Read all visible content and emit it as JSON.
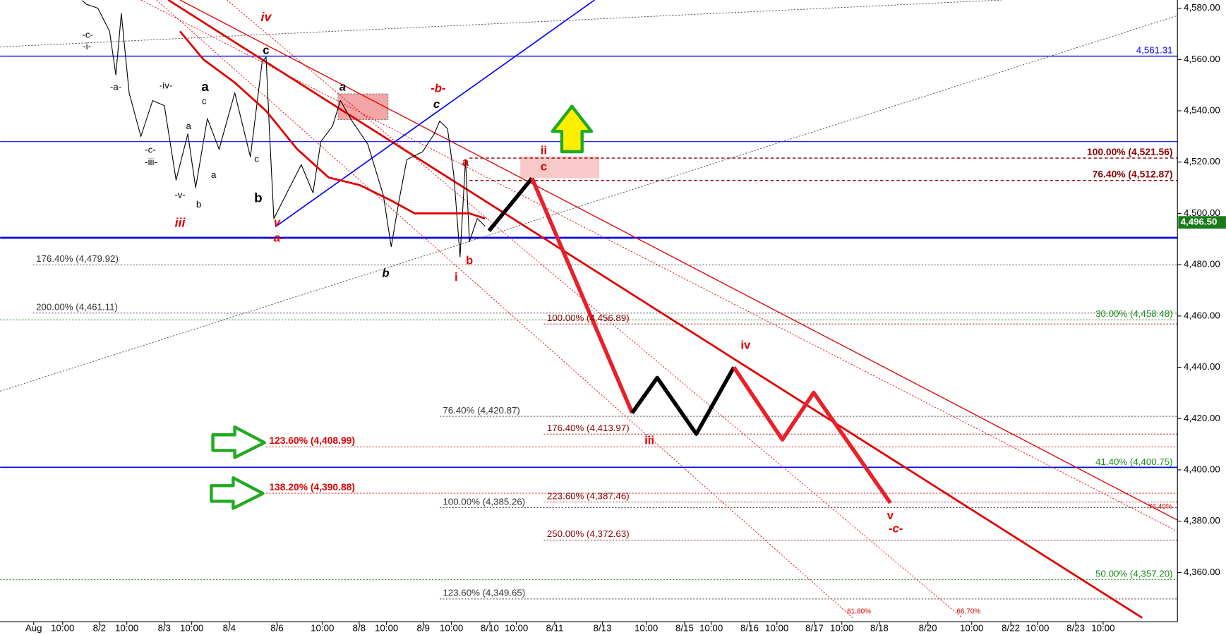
{
  "chart_data": {
    "type": "line",
    "xlim": [
      0,
      150.5
    ],
    "ylim": [
      4340.8,
      4583.2
    ],
    "yticks": [
      {
        "value": 4360,
        "label": "4,360.00"
      },
      {
        "value": 4380,
        "label": "4,380.00"
      },
      {
        "value": 4400,
        "label": "4,400.00"
      },
      {
        "value": 4420,
        "label": "4,420.00"
      },
      {
        "value": 4440,
        "label": "4,440.00"
      },
      {
        "value": 4460,
        "label": "4,460.00"
      },
      {
        "value": 4480,
        "label": "4,480.00"
      },
      {
        "value": 4500,
        "label": "4,500.00"
      },
      {
        "value": 4520,
        "label": "4,520.00"
      },
      {
        "value": 4540,
        "label": "4,540.00"
      },
      {
        "value": 4560,
        "label": "4,560.00"
      },
      {
        "value": 4580,
        "label": "4,580.00"
      }
    ],
    "xticks": [
      {
        "value": 4.3,
        "label": "Aug"
      },
      {
        "value": 8.0,
        "label": "10:00"
      },
      {
        "value": 12.7,
        "label": "8/2"
      },
      {
        "value": 16.2,
        "label": "10:00"
      },
      {
        "value": 21.0,
        "label": "8/3"
      },
      {
        "value": 24.5,
        "label": "10:00"
      },
      {
        "value": 29.3,
        "label": "8/4"
      },
      {
        "value": 35.4,
        "label": "8/6"
      },
      {
        "value": 41.2,
        "label": "10:00"
      },
      {
        "value": 45.9,
        "label": "8/8"
      },
      {
        "value": 49.4,
        "label": "10:00"
      },
      {
        "value": 54.1,
        "label": "8/9"
      },
      {
        "value": 57.7,
        "label": "10:00"
      },
      {
        "value": 62.6,
        "label": "8/10"
      },
      {
        "value": 66.0,
        "label": "10:00"
      },
      {
        "value": 70.9,
        "label": "8/11"
      },
      {
        "value": 77.0,
        "label": "8/13"
      },
      {
        "value": 82.6,
        "label": "10:00"
      },
      {
        "value": 87.5,
        "label": "8/15"
      },
      {
        "value": 90.9,
        "label": "10:00"
      },
      {
        "value": 95.8,
        "label": "8/16"
      },
      {
        "value": 99.3,
        "label": "10:00"
      },
      {
        "value": 104.1,
        "label": "8/17"
      },
      {
        "value": 107.6,
        "label": "10:00"
      },
      {
        "value": 112.4,
        "label": "8/18"
      },
      {
        "value": 118.6,
        "label": "8/20"
      },
      {
        "value": 124.2,
        "label": "10:00"
      },
      {
        "value": 129.2,
        "label": "8/22"
      },
      {
        "value": 132.6,
        "label": "10:00"
      },
      {
        "value": 137.5,
        "label": "8/23"
      },
      {
        "value": 141.0,
        "label": "10:00"
      }
    ],
    "series": [
      {
        "color": "#000000",
        "width": 1,
        "x": [
          10.5,
          11,
          12.5,
          14,
          14.8,
          15.5,
          16.5,
          18,
          19.5,
          21,
          22.5,
          24,
          25,
          26.5,
          28,
          30,
          32,
          33.5,
          34,
          34.5,
          35,
          37,
          38.5,
          40,
          41,
          42.5,
          43.5,
          45,
          47,
          49,
          50,
          51,
          52,
          54,
          55.5,
          56.2,
          57.2,
          58,
          58.8,
          59.5,
          60,
          61,
          62
        ],
        "values": [
          4583,
          4581.6,
          4580,
          4571,
          4554,
          4578,
          4547,
          4530,
          4544,
          4542,
          4513,
          4531,
          4510,
          4537,
          4525,
          4547,
          4522,
          4559,
          4561,
          4528,
          4498,
          4510,
          4519,
          4508,
          4528,
          4534,
          4544,
          4536,
          4527,
          4507,
          4487,
          4505,
          4521,
          4524,
          4531,
          4536,
          4533,
          4515,
          4483,
          4521,
          4489,
          4498,
          4495
        ]
      },
      {
        "color": "#e00000",
        "width": 2.5,
        "x": [
          23,
          26,
          30,
          34,
          38,
          42,
          46,
          50,
          53,
          56,
          60,
          62
        ],
        "values": [
          4571,
          4560,
          4551,
          4540,
          4525,
          4514,
          4511,
          4505,
          4500,
          4500,
          4500,
          4498
        ]
      },
      {
        "color": "#000000",
        "width": 5,
        "x": [
          62.5,
          68
        ],
        "values": [
          4493.2,
          4513.7
        ]
      },
      {
        "color": "#e8202a",
        "width": 5,
        "x": [
          68,
          80.8
        ],
        "values": [
          4513.7,
          4422.2
        ]
      },
      {
        "color": "#000000",
        "width": 5,
        "x": [
          80.8,
          84,
          89,
          93.8
        ],
        "values": [
          4422.2,
          4435.9,
          4414,
          4440
        ]
      },
      {
        "color": "#e8202a",
        "width": 5,
        "x": [
          93.8,
          100,
          104,
          113.8
        ],
        "values": [
          4440,
          4411.8,
          4430.1,
          4387.1
        ]
      }
    ],
    "trendlines": [
      {
        "x": [
          21.5,
          146
        ],
        "values": [
          4583.2,
          4342.3
        ],
        "color": "#e00000",
        "width": 2.5,
        "style": "solid"
      },
      {
        "x": [
          23,
          150.5
        ],
        "values": [
          4583.2,
          4380.4
        ],
        "color": "#e00000",
        "width": 1.2,
        "style": "solid"
      },
      {
        "x": [
          18,
          150.5
        ],
        "values": [
          4583.2,
          4376
        ],
        "color": "#e00000",
        "width": 0.8,
        "style": "dotted"
      },
      {
        "x": [
          20,
          109
        ],
        "values": [
          4583.2,
          4342.3
        ],
        "color": "#e00000",
        "width": 0.8,
        "style": "dotted"
      },
      {
        "x": [
          29,
          123
        ],
        "values": [
          4583.2,
          4342.3
        ],
        "color": "#e00000",
        "width": 0.8,
        "style": "dotted"
      },
      {
        "x": [
          35.2,
          76
        ],
        "values": [
          4494.8,
          4583.2
        ],
        "color": "#0000ff",
        "width": 1.5,
        "style": "solid"
      },
      {
        "x": [
          0,
          128
        ],
        "values": [
          4564.9,
          4583.2
        ],
        "color": "#444444",
        "width": 0.8,
        "style": "dotted"
      },
      {
        "x": [
          0,
          150.5
        ],
        "values": [
          4430.7,
          4577.1
        ],
        "color": "#444444",
        "width": 0.8,
        "style": "dotted"
      }
    ],
    "levels": [
      {
        "value": 4561.31,
        "label": "4,561.31",
        "color": "#0000ff",
        "from": 0,
        "align": "right",
        "style": "solid",
        "width": 1.3
      },
      {
        "value": 4528,
        "color": "#0000ff",
        "from": 0,
        "style": "solid",
        "width": 1
      },
      {
        "value": 4490.5,
        "color": "#0000ff",
        "from": 0,
        "style": "solid",
        "width": 2.5
      },
      {
        "value": 4401,
        "color": "#0000ff",
        "from": 0,
        "style": "solid",
        "width": 1.5
      },
      {
        "value": 4521.56,
        "label": "100.00% (4,521.56)",
        "color": "#8b0000",
        "from": 60,
        "align": "right",
        "style": "dashed",
        "width": 1.2,
        "bold": true
      },
      {
        "value": 4512.87,
        "label": "76.40% (4,512.87)",
        "color": "#8b0000",
        "from": 60,
        "align": "right",
        "style": "dashed",
        "width": 1.2,
        "bold": true
      },
      {
        "value": 4479.92,
        "label": "176.40% (4,479.92)",
        "color": "#333333",
        "from": 4.2,
        "align": "left",
        "style": "dotted",
        "width": 0.8
      },
      {
        "value": 4461.11,
        "label": "200.00% (4,461.11)",
        "color": "#333333",
        "from": 4.2,
        "align": "left",
        "style": "dotted",
        "width": 0.8
      },
      {
        "value": 4458.48,
        "label": "30.00% (4,458.48)",
        "color": "#1a8a1a",
        "from": 0,
        "align": "right",
        "style": "dotted",
        "width": 0.8
      },
      {
        "value": 4456.89,
        "label": "100.00% (4,456.89)",
        "color": "#8b0000",
        "from": 69.5,
        "align": "left",
        "style": "dotted",
        "width": 0.8
      },
      {
        "value": 4420.87,
        "label": "76.40% (4,420.87)",
        "color": "#333333",
        "from": 56.2,
        "align": "left",
        "style": "dotted",
        "width": 0.8
      },
      {
        "value": 4413.97,
        "label": "176.40% (4,413.97)",
        "color": "#8b0000",
        "from": 69.5,
        "align": "left",
        "style": "dotted",
        "width": 0.8
      },
      {
        "value": 4408.99,
        "label": "123.60% (4,408.99)",
        "color": "#e00000",
        "from": 34,
        "align": "left",
        "style": "dotted",
        "width": 0.8,
        "bold": true
      },
      {
        "value": 4400.75,
        "label": "41.40% (4,400.75)",
        "color": "#1a8a1a",
        "from": 130,
        "align": "right",
        "style": "dotted",
        "width": 0.8
      },
      {
        "value": 4390.88,
        "label": "138.20% (4,390.88)",
        "color": "#e00000",
        "from": 34,
        "align": "left",
        "style": "dotted",
        "width": 0.8,
        "bold": true
      },
      {
        "value": 4387.46,
        "label": "223.60% (4,387.46)",
        "color": "#8b0000",
        "from": 69.5,
        "align": "left",
        "style": "dotted",
        "width": 0.8
      },
      {
        "value": 4385.26,
        "label": "100.00% (4,385.26)",
        "color": "#333333",
        "from": 56.2,
        "align": "left",
        "style": "dotted",
        "width": 0.8
      },
      {
        "value": 4372.63,
        "label": "250.00% (4,372.63)",
        "color": "#8b0000",
        "from": 69.5,
        "align": "left",
        "style": "dotted",
        "width": 0.8
      },
      {
        "value": 4357.2,
        "label": "50.00% (4,357.20)",
        "color": "#1a8a1a",
        "from": 0,
        "align": "right",
        "style": "dotted",
        "width": 0.8
      },
      {
        "value": 4349.65,
        "label": "123.60% (4,349.65)",
        "color": "#333333",
        "from": 56.2,
        "align": "left",
        "style": "dotted",
        "width": 0.8
      }
    ],
    "last_price": {
      "value": 4496.5,
      "label": "4,496.50",
      "color": "#1a7a1a"
    },
    "annotations": [
      {
        "text": "-c-",
        "color": "#000000"
      },
      {
        "text": "-i-",
        "color": "#000000"
      },
      {
        "text": "-a-",
        "color": "#000000"
      },
      {
        "text": "-iv-",
        "color": "#000000"
      },
      {
        "text": "a",
        "color": "#000000"
      },
      {
        "text": "c",
        "color": "#000000"
      },
      {
        "text": "a",
        "color": "#000000"
      },
      {
        "text": "-c-",
        "color": "#000000"
      },
      {
        "text": "-iii-",
        "color": "#000000"
      },
      {
        "text": "-v-",
        "color": "#000000"
      },
      {
        "text": "b",
        "color": "#000000"
      },
      {
        "text": "a",
        "color": "#000000"
      },
      {
        "text": "c",
        "color": "#000000"
      },
      {
        "text": "b",
        "color": "#000000"
      },
      {
        "text": "c",
        "color": "#000000"
      },
      {
        "text": "a",
        "color": "#000000"
      },
      {
        "text": "b",
        "color": "#000000"
      },
      {
        "text": "c",
        "color": "#000000"
      },
      {
        "text": "iv",
        "color": "#e00000"
      },
      {
        "text": "iii",
        "color": "#e00000"
      },
      {
        "text": "v",
        "color": "#e00000"
      },
      {
        "text": "-a-",
        "color": "#e00000"
      },
      {
        "text": "-b-",
        "color": "#e00000"
      },
      {
        "text": "a",
        "color": "#e00000"
      },
      {
        "text": "b",
        "color": "#e00000"
      },
      {
        "text": "i",
        "color": "#e00000"
      },
      {
        "text": "ii",
        "color": "#e00000"
      },
      {
        "text": "c",
        "color": "#e00000"
      },
      {
        "text": "iii",
        "color": "#e00000"
      },
      {
        "text": "iv",
        "color": "#e00000"
      },
      {
        "text": "v",
        "color": "#e00000"
      },
      {
        "text": "-c-",
        "color": "#e00000"
      },
      {
        "text": "61.80%",
        "color": "#e00000"
      },
      {
        "text": "66.70%",
        "color": "#e00000"
      },
      {
        "text": "76.40%",
        "color": "#e00000"
      }
    ]
  }
}
